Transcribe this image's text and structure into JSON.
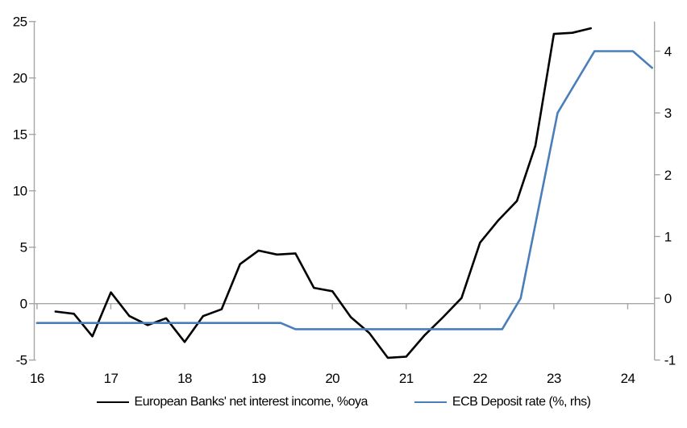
{
  "chart_data": {
    "type": "line",
    "title": "",
    "xlabel": "",
    "ylabel_left": "",
    "ylabel_right": "",
    "grid": false,
    "legend_position": "bottom",
    "x_axis": {
      "ticks": [
        16,
        17,
        18,
        19,
        20,
        21,
        22,
        23,
        24
      ],
      "range": [
        15.963,
        24.363
      ]
    },
    "left_axis": {
      "ticks": [
        -5,
        0,
        5,
        10,
        15,
        20,
        25
      ],
      "range": [
        -5,
        25
      ]
    },
    "right_axis": {
      "ticks": [
        -1,
        0,
        1,
        2,
        3,
        4
      ],
      "range": [
        -1,
        4.48
      ]
    },
    "series": [
      {
        "name": "European Banks' net interest income, %oya",
        "axis": "left",
        "color": "#000000",
        "x": [
          16.25,
          16.5,
          16.75,
          17.0,
          17.25,
          17.5,
          17.75,
          18.0,
          18.25,
          18.5,
          18.75,
          19.0,
          19.25,
          19.5,
          19.75,
          20.0,
          20.25,
          20.5,
          20.75,
          21.0,
          21.25,
          21.5,
          21.75,
          22.0,
          22.25,
          22.5,
          22.75,
          23.0,
          23.25,
          23.5
        ],
        "y": [
          -0.7,
          -0.9,
          -2.9,
          1.0,
          -1.1,
          -1.9,
          -1.3,
          -3.4,
          -1.1,
          -0.5,
          3.5,
          4.7,
          4.35,
          4.45,
          1.4,
          1.1,
          -1.2,
          -2.6,
          -4.8,
          -4.7,
          -2.8,
          -1.2,
          0.5,
          5.4,
          7.4,
          9.1,
          14.0,
          23.9,
          24.0,
          24.4
        ]
      },
      {
        "name": "ECB Deposit rate (%, rhs)",
        "axis": "right",
        "color": "#4a7ebb",
        "x": [
          16.0,
          19.3,
          19.5,
          22.3,
          22.55,
          23.05,
          23.55,
          24.07,
          24.33
        ],
        "y": [
          -0.4,
          -0.4,
          -0.5,
          -0.5,
          0.0,
          3.0,
          4.0,
          4.0,
          3.73
        ]
      }
    ]
  },
  "colors": {
    "axis": "#a6a6a6",
    "text": "#000000",
    "background": "#ffffff"
  }
}
